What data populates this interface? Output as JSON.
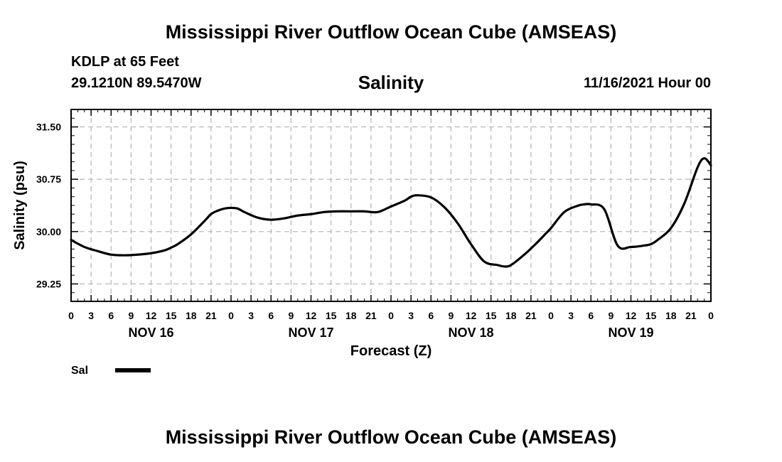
{
  "header": {
    "main_title": "Mississippi River Outflow Ocean Cube (AMSEAS)",
    "station": "KDLP at 65 Feet",
    "coords": "29.1210N  89.5470W",
    "chart_title": "Salinity",
    "datetime": "11/16/2021 Hour 00"
  },
  "footer": {
    "bottom_title": "Mississippi River Outflow Ocean Cube (AMSEAS)"
  },
  "chart_data": {
    "type": "line",
    "title": "Salinity",
    "xlabel": "Forecast (Z)",
    "ylabel": "Salinity (psu)",
    "xlim": [
      0,
      96
    ],
    "ylim": [
      29.0,
      31.75
    ],
    "yticks": [
      29.25,
      30.0,
      30.75,
      31.5
    ],
    "ytick_labels": [
      "29.25",
      "30.00",
      "30.75",
      "31.50"
    ],
    "xtick_hours": [
      0,
      3,
      6,
      9,
      12,
      15,
      18,
      21,
      24,
      27,
      30,
      33,
      36,
      39,
      42,
      45,
      48,
      51,
      54,
      57,
      60,
      63,
      66,
      69,
      72,
      75,
      78,
      81,
      84,
      87,
      90,
      93,
      96
    ],
    "xtick_labels": [
      "0",
      "3",
      "6",
      "9",
      "12",
      "15",
      "18",
      "21",
      "0",
      "3",
      "6",
      "9",
      "12",
      "15",
      "18",
      "21",
      "0",
      "3",
      "6",
      "9",
      "12",
      "15",
      "18",
      "21",
      "0",
      "3",
      "6",
      "9",
      "12",
      "15",
      "18",
      "21",
      "0"
    ],
    "day_labels": [
      {
        "label": "NOV 16",
        "hour": 12
      },
      {
        "label": "NOV 17",
        "hour": 36
      },
      {
        "label": "NOV 18",
        "hour": 60
      },
      {
        "label": "NOV 19",
        "hour": 84
      }
    ],
    "grid": true,
    "legend_position": "bottom-left",
    "series": [
      {
        "name": "Sal",
        "color": "#000000",
        "x": [
          0,
          2,
          4,
          6,
          8,
          10,
          12,
          14,
          15,
          16,
          18,
          20,
          21,
          22,
          23,
          24,
          25,
          26,
          28,
          30,
          32,
          34,
          36,
          38,
          40,
          42,
          44,
          46,
          48,
          50,
          51,
          52,
          54,
          56,
          58,
          60,
          62,
          64,
          65,
          66,
          68,
          70,
          71,
          72,
          74,
          76,
          77,
          78,
          80,
          82,
          84,
          86,
          87,
          88,
          90,
          92,
          94,
          95,
          96
        ],
        "y": [
          29.88,
          29.78,
          29.72,
          29.67,
          29.66,
          29.67,
          29.69,
          29.73,
          29.77,
          29.82,
          29.96,
          30.15,
          30.25,
          30.3,
          30.33,
          30.34,
          30.33,
          30.28,
          30.2,
          30.17,
          30.19,
          30.23,
          30.25,
          30.28,
          30.29,
          30.29,
          30.29,
          30.28,
          30.36,
          30.44,
          30.5,
          30.52,
          30.49,
          30.35,
          30.12,
          29.82,
          29.57,
          29.52,
          29.5,
          29.52,
          29.67,
          29.85,
          29.95,
          30.05,
          30.28,
          30.37,
          30.39,
          30.39,
          30.32,
          29.8,
          29.78,
          29.8,
          29.82,
          29.88,
          30.05,
          30.4,
          30.92,
          31.05,
          30.95
        ]
      }
    ]
  }
}
